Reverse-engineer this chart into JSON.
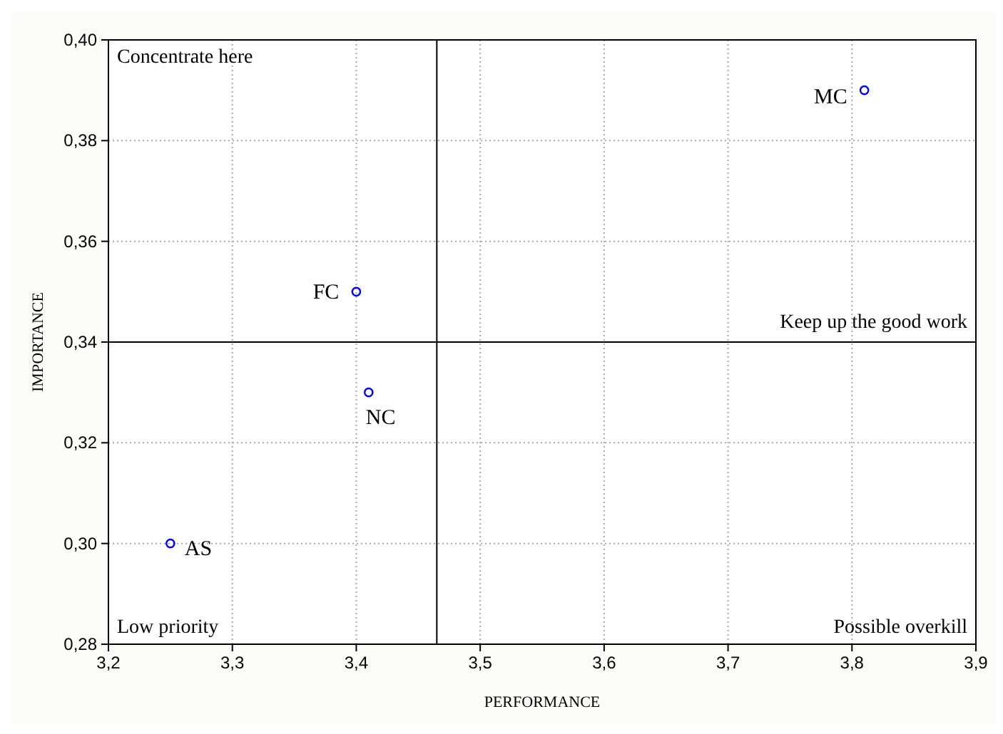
{
  "chart_data": {
    "type": "scatter",
    "xlabel": "PERFORMANCE",
    "ylabel": "IMPORTANCE",
    "x": [
      3.25,
      3.4,
      3.41,
      3.81
    ],
    "series": [
      {
        "color": "#0000ff",
        "values": [
          0.3,
          0.35,
          0.33,
          0.39
        ]
      }
    ],
    "marker": "circle",
    "grid": true,
    "xlim": [
      3.2,
      3.9
    ],
    "ylim": [
      0.28,
      0.4
    ],
    "xticks": [
      {
        "value": 3.2,
        "label": "3,2"
      },
      {
        "value": 3.3,
        "label": "3,3"
      },
      {
        "value": 3.4,
        "label": "3,4"
      },
      {
        "value": 3.5,
        "label": "3,5"
      },
      {
        "value": 3.6,
        "label": "3,6"
      },
      {
        "value": 3.7,
        "label": "3,7"
      },
      {
        "value": 3.8,
        "label": "3,8"
      },
      {
        "value": 3.9,
        "label": "3,9"
      }
    ],
    "yticks": [
      {
        "value": 0.28,
        "label": "0,28"
      },
      {
        "value": 0.3,
        "label": "0,30"
      },
      {
        "value": 0.32,
        "label": "0,32"
      },
      {
        "value": 0.34,
        "label": "0,34"
      },
      {
        "value": 0.36,
        "label": "0,36"
      },
      {
        "value": 0.38,
        "label": "0,38"
      },
      {
        "value": 0.4,
        "label": "0,40"
      }
    ],
    "ref_lines": [
      {
        "axis": "x",
        "value": 3.465,
        "color": "#000000"
      },
      {
        "axis": "y",
        "value": 0.34,
        "color": "#000000"
      }
    ],
    "annotations": [
      "Concentrate here",
      "Keep up the good work",
      "Low priority",
      "Possible overkill",
      {
        "text": "AS",
        "x": 3.25,
        "y": 0.3
      },
      {
        "text": "FC",
        "x": 3.4,
        "y": 0.35
      },
      {
        "text": "NC",
        "x": 3.41,
        "y": 0.33
      },
      {
        "text": "MC",
        "x": 3.81,
        "y": 0.39
      }
    ]
  }
}
